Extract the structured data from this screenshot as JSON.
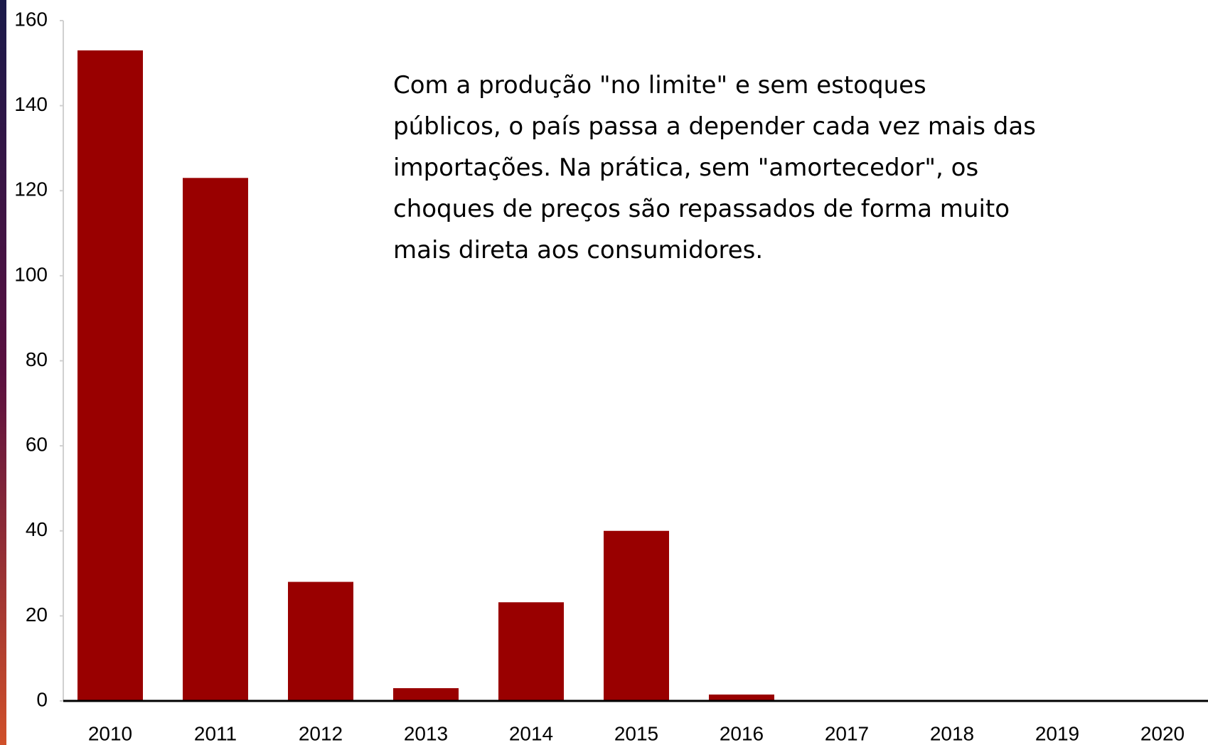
{
  "chart_data": {
    "type": "bar",
    "categories": [
      "2010",
      "2011",
      "2012",
      "2013",
      "2014",
      "2015",
      "2016",
      "2017",
      "2018",
      "2019",
      "2020"
    ],
    "values": [
      153,
      123,
      28,
      3,
      23.2,
      40,
      1.5,
      0,
      0,
      0,
      0
    ],
    "color": "#990000",
    "ylim": [
      0,
      160
    ],
    "yticks": [
      0,
      20,
      40,
      60,
      80,
      100,
      120,
      140,
      160
    ],
    "grid": false,
    "annotation": [
      "Com a produção \"no limite\" e sem estoques",
      "públicos, o país passa a depender cada vez mais das",
      "importações. Na prática, sem \"amortecedor\", os",
      "choques de preços são repassados de forma muito",
      "mais direta aos consumidores."
    ]
  }
}
